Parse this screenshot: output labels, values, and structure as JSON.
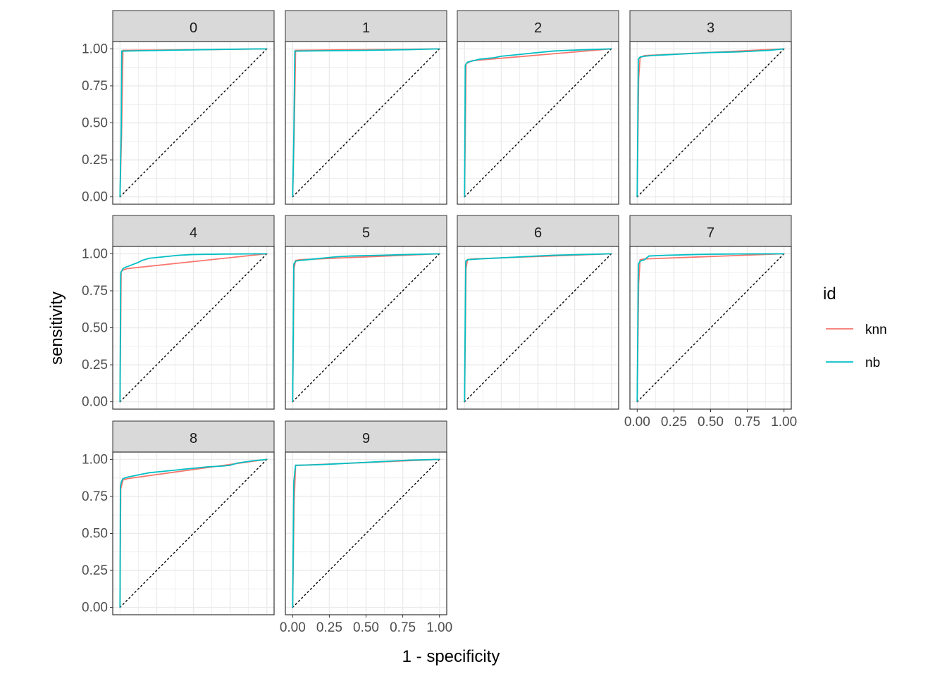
{
  "chart_data": {
    "type": "line",
    "xlabel": "1 - specificity",
    "ylabel": "sensitivity",
    "xlim": [
      0,
      1
    ],
    "ylim": [
      0,
      1
    ],
    "x_ticks": [
      "0.00",
      "0.25",
      "0.50",
      "0.75",
      "1.00"
    ],
    "y_ticks": [
      "0.00",
      "0.25",
      "0.50",
      "0.75",
      "1.00"
    ],
    "grid": true,
    "reference_line": "dotted diagonal y = x",
    "legend": {
      "title": "id",
      "position": "right",
      "entries": [
        {
          "name": "knn",
          "color": "#F8766D"
        },
        {
          "name": "nb",
          "color": "#00BFC4"
        }
      ]
    },
    "panels": [
      {
        "label": "0",
        "series": [
          {
            "name": "knn",
            "x": [
              0,
              0.01,
              0.02,
              0.6,
              1.0
            ],
            "y": [
              0,
              0.4,
              0.99,
              0.995,
              1.0
            ]
          },
          {
            "name": "nb",
            "x": [
              0,
              0.008,
              0.012,
              0.3,
              0.6,
              0.8,
              1.0
            ],
            "y": [
              0,
              0.45,
              0.985,
              0.99,
              0.995,
              0.998,
              1.0
            ]
          }
        ]
      },
      {
        "label": "1",
        "series": [
          {
            "name": "knn",
            "x": [
              0,
              0.01,
              0.02,
              1.0
            ],
            "y": [
              0,
              0.4,
              0.99,
              1.0
            ]
          },
          {
            "name": "nb",
            "x": [
              0,
              0.008,
              0.015,
              0.5,
              0.8,
              1.0
            ],
            "y": [
              0,
              0.4,
              0.985,
              0.99,
              0.995,
              1.0
            ]
          }
        ]
      },
      {
        "label": "2",
        "series": [
          {
            "name": "knn",
            "x": [
              0,
              0.01,
              0.05,
              1.0
            ],
            "y": [
              0,
              0.9,
              0.92,
              1.0
            ]
          },
          {
            "name": "nb",
            "x": [
              0,
              0.005,
              0.02,
              0.06,
              0.1,
              0.15,
              0.2,
              0.25,
              0.3,
              0.4,
              0.5,
              0.6,
              0.7,
              0.85,
              1.0
            ],
            "y": [
              0,
              0.89,
              0.91,
              0.92,
              0.93,
              0.935,
              0.94,
              0.95,
              0.955,
              0.965,
              0.975,
              0.985,
              0.99,
              0.995,
              1.0
            ]
          }
        ]
      },
      {
        "label": "3",
        "series": [
          {
            "name": "knn",
            "x": [
              0,
              0.01,
              0.02,
              0.05,
              1.0
            ],
            "y": [
              0,
              0.8,
              0.94,
              0.955,
              1.0
            ]
          },
          {
            "name": "nb",
            "x": [
              0,
              0.008,
              0.02,
              0.05,
              0.1,
              0.2,
              0.3,
              0.5,
              0.7,
              0.9,
              0.95,
              1.0
            ],
            "y": [
              0,
              0.93,
              0.945,
              0.95,
              0.955,
              0.96,
              0.965,
              0.975,
              0.98,
              0.99,
              0.995,
              1.0
            ]
          }
        ]
      },
      {
        "label": "4",
        "series": [
          {
            "name": "knn",
            "x": [
              0,
              0.008,
              0.02,
              0.05,
              1.0
            ],
            "y": [
              0,
              0.88,
              0.89,
              0.9,
              1.0
            ]
          },
          {
            "name": "nb",
            "x": [
              0,
              0.005,
              0.02,
              0.04,
              0.08,
              0.12,
              0.15,
              0.2,
              0.3,
              0.4,
              0.5,
              0.7,
              1.0
            ],
            "y": [
              0,
              0.87,
              0.9,
              0.91,
              0.925,
              0.94,
              0.955,
              0.97,
              0.98,
              0.99,
              0.995,
              0.998,
              1.0
            ]
          }
        ]
      },
      {
        "label": "5",
        "series": [
          {
            "name": "knn",
            "x": [
              0,
              0.01,
              0.02,
              0.05,
              1.0
            ],
            "y": [
              0,
              0.9,
              0.955,
              0.96,
              1.0
            ]
          },
          {
            "name": "nb",
            "x": [
              0,
              0.008,
              0.02,
              0.05,
              0.1,
              0.2,
              0.3,
              0.4,
              0.6,
              0.8,
              1.0
            ],
            "y": [
              0,
              0.93,
              0.95,
              0.955,
              0.96,
              0.97,
              0.98,
              0.985,
              0.99,
              0.995,
              1.0
            ]
          }
        ]
      },
      {
        "label": "6",
        "series": [
          {
            "name": "knn",
            "x": [
              0,
              0.01,
              0.02,
              0.05,
              1.0
            ],
            "y": [
              0,
              0.9,
              0.96,
              0.965,
              1.0
            ]
          },
          {
            "name": "nb",
            "x": [
              0,
              0.008,
              0.02,
              0.1,
              0.2,
              0.3,
              0.5,
              0.6,
              0.8,
              1.0
            ],
            "y": [
              0,
              0.95,
              0.96,
              0.965,
              0.97,
              0.975,
              0.985,
              0.99,
              0.995,
              1.0
            ]
          }
        ]
      },
      {
        "label": "7",
        "series": [
          {
            "name": "knn",
            "x": [
              0,
              0.01,
              0.02,
              0.05,
              1.0
            ],
            "y": [
              0,
              0.8,
              0.96,
              0.965,
              1.0
            ]
          },
          {
            "name": "nb",
            "x": [
              0,
              0.008,
              0.02,
              0.05,
              0.08,
              0.2,
              0.4,
              0.5,
              0.7,
              1.0
            ],
            "y": [
              0,
              0.93,
              0.95,
              0.96,
              0.985,
              0.99,
              0.995,
              0.997,
              0.999,
              1.0
            ]
          }
        ]
      },
      {
        "label": "8",
        "series": [
          {
            "name": "knn",
            "x": [
              0,
              0.005,
              0.02,
              0.05,
              1.0
            ],
            "y": [
              0,
              0.8,
              0.86,
              0.87,
              1.0
            ]
          },
          {
            "name": "nb",
            "x": [
              0,
              0.003,
              0.01,
              0.02,
              0.05,
              0.1,
              0.15,
              0.2,
              0.3,
              0.4,
              0.5,
              0.6,
              0.7,
              0.75,
              0.8,
              0.9,
              1.0
            ],
            "y": [
              0,
              0.82,
              0.85,
              0.87,
              0.88,
              0.89,
              0.9,
              0.91,
              0.92,
              0.93,
              0.94,
              0.95,
              0.955,
              0.96,
              0.975,
              0.99,
              1.0
            ]
          }
        ]
      },
      {
        "label": "9",
        "series": [
          {
            "name": "knn",
            "x": [
              0,
              0.01,
              0.02,
              0.05,
              1.0
            ],
            "y": [
              0,
              0.7,
              0.96,
              0.96,
              1.0
            ]
          },
          {
            "name": "nb",
            "x": [
              0,
              0.008,
              0.02,
              0.1,
              0.2,
              0.3,
              0.4,
              0.5,
              0.6,
              0.7,
              0.8,
              1.0
            ],
            "y": [
              0,
              0.85,
              0.96,
              0.962,
              0.965,
              0.97,
              0.975,
              0.98,
              0.985,
              0.99,
              0.995,
              1.0
            ]
          }
        ]
      }
    ]
  }
}
